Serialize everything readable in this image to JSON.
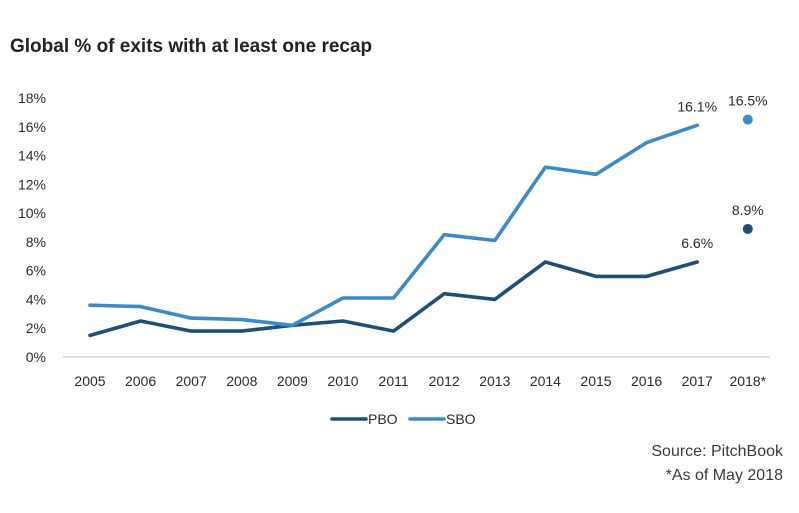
{
  "title": "Global % of exits with at least one recap",
  "source": "Source: PitchBook",
  "note": "*As of May 2018",
  "colors": {
    "PBO": "#1f4e79",
    "SBO": "#3b8bcb",
    "axis": "#bfbfbf",
    "text": "#2b2b2b"
  },
  "chart_data": {
    "type": "line",
    "title": "Global % of exits with at least one recap",
    "categories": [
      "2005",
      "2006",
      "2007",
      "2008",
      "2009",
      "2010",
      "2011",
      "2012",
      "2013",
      "2014",
      "2015",
      "2016",
      "2017",
      "2018*"
    ],
    "y_tick_labels": [
      "0%",
      "2%",
      "4%",
      "6%",
      "8%",
      "10%",
      "12%",
      "14%",
      "16%",
      "18%"
    ],
    "ylim": [
      0,
      18
    ],
    "grid": false,
    "legend_position": "bottom",
    "series": [
      {
        "name": "PBO",
        "values": [
          1.5,
          2.5,
          1.8,
          1.8,
          2.2,
          2.5,
          1.8,
          4.4,
          4.0,
          6.6,
          5.6,
          5.6,
          6.6,
          8.9
        ],
        "separate_last_point": true,
        "labels": [
          {
            "index": 12,
            "text": "6.6%"
          },
          {
            "index": 13,
            "text": "8.9%"
          }
        ]
      },
      {
        "name": "SBO",
        "values": [
          3.6,
          3.5,
          2.7,
          2.6,
          2.2,
          4.1,
          4.1,
          8.5,
          8.1,
          13.2,
          12.7,
          14.9,
          16.1,
          16.5
        ],
        "separate_last_point": true,
        "labels": [
          {
            "index": 12,
            "text": "16.1%"
          },
          {
            "index": 13,
            "text": "16.5%"
          }
        ]
      }
    ]
  }
}
